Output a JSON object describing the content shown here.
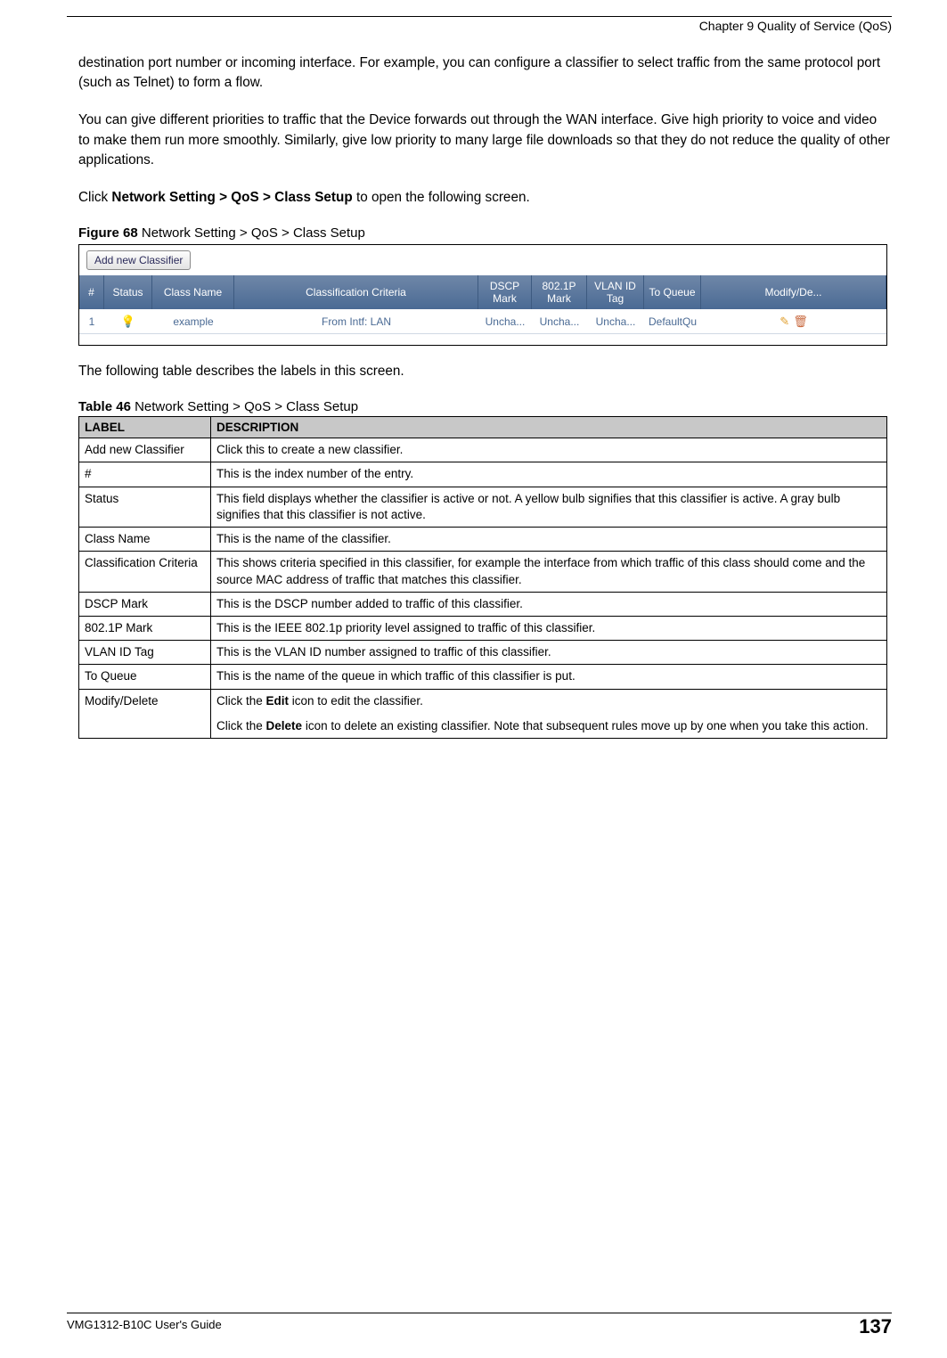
{
  "header": {
    "chapter": "Chapter 9 Quality of Service (QoS)"
  },
  "paragraphs": {
    "p1": "destination port number or incoming interface. For example, you can configure a classifier to select traffic from the same protocol port (such as Telnet) to form a flow.",
    "p2": "You can give different priorities to traffic that the Device forwards out through the WAN interface. Give high priority to voice and video to make them run more smoothly. Similarly, give low priority to many large file downloads so that they do not reduce the quality of other applications.",
    "p3_pre": "Click ",
    "p3_bold": "Network Setting > QoS > Class Setup",
    "p3_post": " to open the following screen.",
    "p4": "The following table describes the labels in this screen."
  },
  "figure": {
    "label": "Figure 68",
    "caption": "   Network Setting > QoS > Class Setup",
    "add_button": "Add new Classifier",
    "headers": {
      "num": "#",
      "status": "Status",
      "name": "Class Name",
      "criteria": "Classification Criteria",
      "dscp": "DSCP Mark",
      "p8021": "802.1P Mark",
      "vlan": "VLAN ID Tag",
      "queue": "To Queue",
      "mod": "Modify/De..."
    },
    "row": {
      "num": "1",
      "name": "example",
      "criteria": "From Intf: LAN",
      "dscp": "Uncha...",
      "p8021": "Uncha...",
      "vlan": "Uncha...",
      "queue": "DefaultQu"
    }
  },
  "table": {
    "label": "Table 46",
    "caption": "   Network Setting > QoS > Class Setup",
    "head_label": "LABEL",
    "head_desc": "DESCRIPTION",
    "rows": [
      {
        "label": "Add new Classifier",
        "desc": "Click this to create a new classifier."
      },
      {
        "label": "#",
        "desc": "This is the index number of the entry."
      },
      {
        "label": "Status",
        "desc": "This field displays whether the classifier is active or not. A yellow bulb signifies that this classifier is active. A gray bulb signifies that this classifier is not active."
      },
      {
        "label": "Class Name",
        "desc": "This is the name of the classifier."
      },
      {
        "label": "Classification Criteria",
        "desc": "This shows criteria specified in this classifier, for example the interface from which traffic of this class should come and the source MAC address of traffic that matches this classifier."
      },
      {
        "label": "DSCP Mark",
        "desc": "This is the DSCP number added to traffic of this classifier."
      },
      {
        "label": "802.1P Mark",
        "desc": "This is the IEEE 802.1p priority level assigned to traffic of this classifier."
      },
      {
        "label": "VLAN ID Tag",
        "desc": "This is the VLAN ID number assigned to traffic of this classifier."
      },
      {
        "label": "To Queue",
        "desc": "This is the name of the queue in which traffic of this classifier is put."
      }
    ],
    "modify_row": {
      "label": "Modify/Delete",
      "line1_pre": "Click the ",
      "line1_bold": "Edit",
      "line1_post": " icon to edit the classifier.",
      "line2_pre": "Click the ",
      "line2_bold": "Delete",
      "line2_post": " icon to delete an existing classifier. Note that subsequent rules move up by one when you take this action."
    }
  },
  "footer": {
    "guide": "VMG1312-B10C User's Guide",
    "page": "137"
  }
}
